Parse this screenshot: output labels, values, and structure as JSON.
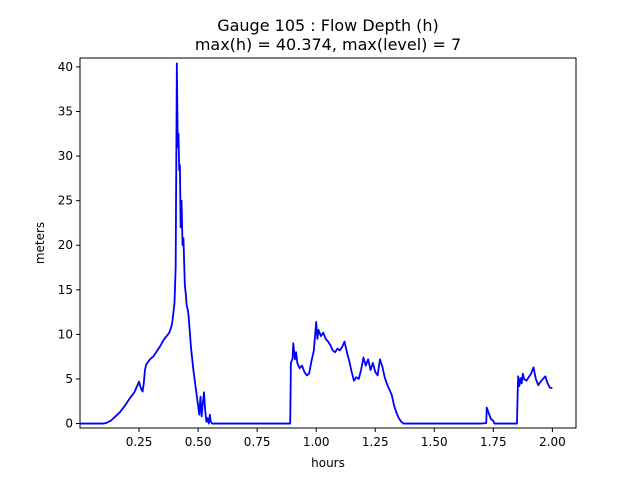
{
  "chart_data": {
    "type": "line",
    "title": "Gauge 105 : Flow Depth (h)",
    "subtitle": "max(h) =  40.374,    max(level) = 7",
    "xlabel": "hours",
    "ylabel": "meters",
    "xlim": [
      0.0,
      2.1
    ],
    "ylim": [
      -0.5,
      41.0
    ],
    "xticks": [
      0.25,
      0.5,
      0.75,
      1.0,
      1.25,
      1.5,
      1.75,
      2.0
    ],
    "xtick_labels": [
      "0.25",
      "0.50",
      "0.75",
      "1.00",
      "1.25",
      "1.50",
      "1.75",
      "2.00"
    ],
    "yticks": [
      0,
      5,
      10,
      15,
      20,
      25,
      30,
      35,
      40
    ],
    "ytick_labels": [
      "0",
      "5",
      "10",
      "15",
      "20",
      "25",
      "30",
      "35",
      "40"
    ],
    "grid": false,
    "color": "#0000ff",
    "series": [
      {
        "x": [
          0.0,
          0.05,
          0.1,
          0.11,
          0.13,
          0.15,
          0.17,
          0.19,
          0.21,
          0.23,
          0.25,
          0.255,
          0.26,
          0.265,
          0.27,
          0.275,
          0.28,
          0.29,
          0.3,
          0.31,
          0.32,
          0.33,
          0.34,
          0.35,
          0.36,
          0.37,
          0.38,
          0.39,
          0.4,
          0.405,
          0.41,
          0.414,
          0.417,
          0.42,
          0.423,
          0.426,
          0.43,
          0.434,
          0.438,
          0.441,
          0.444,
          0.448,
          0.452,
          0.456,
          0.46,
          0.47,
          0.48,
          0.49,
          0.5,
          0.505,
          0.51,
          0.515,
          0.52,
          0.525,
          0.53,
          0.535,
          0.54,
          0.545,
          0.55,
          0.553,
          0.556,
          0.56,
          0.565,
          0.6,
          0.7,
          0.8,
          0.89,
          0.893,
          0.9,
          0.903,
          0.906,
          0.91,
          0.915,
          0.92,
          0.93,
          0.94,
          0.95,
          0.96,
          0.97,
          0.98,
          0.99,
          1.0,
          1.005,
          1.01,
          1.02,
          1.03,
          1.04,
          1.05,
          1.06,
          1.07,
          1.08,
          1.09,
          1.1,
          1.11,
          1.12,
          1.13,
          1.14,
          1.15,
          1.16,
          1.17,
          1.18,
          1.19,
          1.2,
          1.21,
          1.22,
          1.23,
          1.24,
          1.25,
          1.26,
          1.27,
          1.28,
          1.29,
          1.3,
          1.31,
          1.32,
          1.33,
          1.34,
          1.35,
          1.36,
          1.37,
          1.38,
          1.4,
          1.5,
          1.6,
          1.7,
          1.72,
          1.722,
          1.73,
          1.74,
          1.75,
          1.755,
          1.76,
          1.8,
          1.85,
          1.853,
          1.855,
          1.86,
          1.865,
          1.87,
          1.875,
          1.88,
          1.89,
          1.9,
          1.91,
          1.92,
          1.93,
          1.94,
          1.95,
          1.96,
          1.97,
          1.98,
          1.99,
          2.0
        ],
        "values": [
          0,
          0,
          0,
          0.05,
          0.3,
          0.8,
          1.3,
          2.0,
          2.8,
          3.5,
          4.7,
          4.2,
          3.8,
          3.6,
          4.5,
          6.0,
          6.6,
          7.0,
          7.3,
          7.5,
          7.9,
          8.3,
          8.7,
          9.2,
          9.6,
          9.9,
          10.3,
          11.2,
          13.5,
          17.5,
          40.4,
          31.0,
          32.5,
          28.4,
          29.0,
          22.0,
          25.0,
          20.0,
          20.8,
          18.0,
          15.5,
          14.5,
          13.2,
          12.8,
          12.0,
          8.5,
          6.0,
          4.0,
          2.0,
          1.0,
          3.0,
          0.8,
          2.3,
          3.5,
          1.5,
          0.2,
          0.6,
          0.0,
          1.0,
          0.3,
          0.1,
          0.0,
          0.0,
          0.0,
          0.0,
          0.0,
          0.0,
          6.8,
          7.3,
          9.0,
          8.2,
          7.2,
          8.0,
          6.8,
          6.2,
          6.5,
          5.8,
          5.4,
          5.6,
          7.0,
          8.2,
          11.4,
          9.5,
          10.5,
          9.8,
          10.2,
          9.5,
          9.2,
          8.8,
          8.2,
          8.0,
          8.4,
          8.2,
          8.6,
          9.2,
          8.0,
          7.0,
          5.8,
          4.8,
          5.2,
          5.0,
          6.0,
          7.4,
          6.5,
          7.2,
          6.0,
          6.8,
          5.8,
          5.4,
          7.2,
          6.4,
          5.2,
          4.4,
          3.8,
          3.2,
          2.0,
          1.2,
          0.6,
          0.2,
          0.0,
          0.0,
          0.0,
          0.0,
          0.0,
          0.0,
          0.05,
          1.8,
          1.2,
          0.5,
          0.3,
          0.0,
          0.0,
          0.0,
          0.0,
          3.5,
          5.3,
          4.2,
          5.1,
          4.5,
          5.6,
          5.0,
          4.8,
          5.2,
          5.6,
          6.3,
          5.0,
          4.3,
          4.7,
          5.0,
          5.3,
          4.5,
          4.0,
          4.0
        ]
      }
    ]
  }
}
